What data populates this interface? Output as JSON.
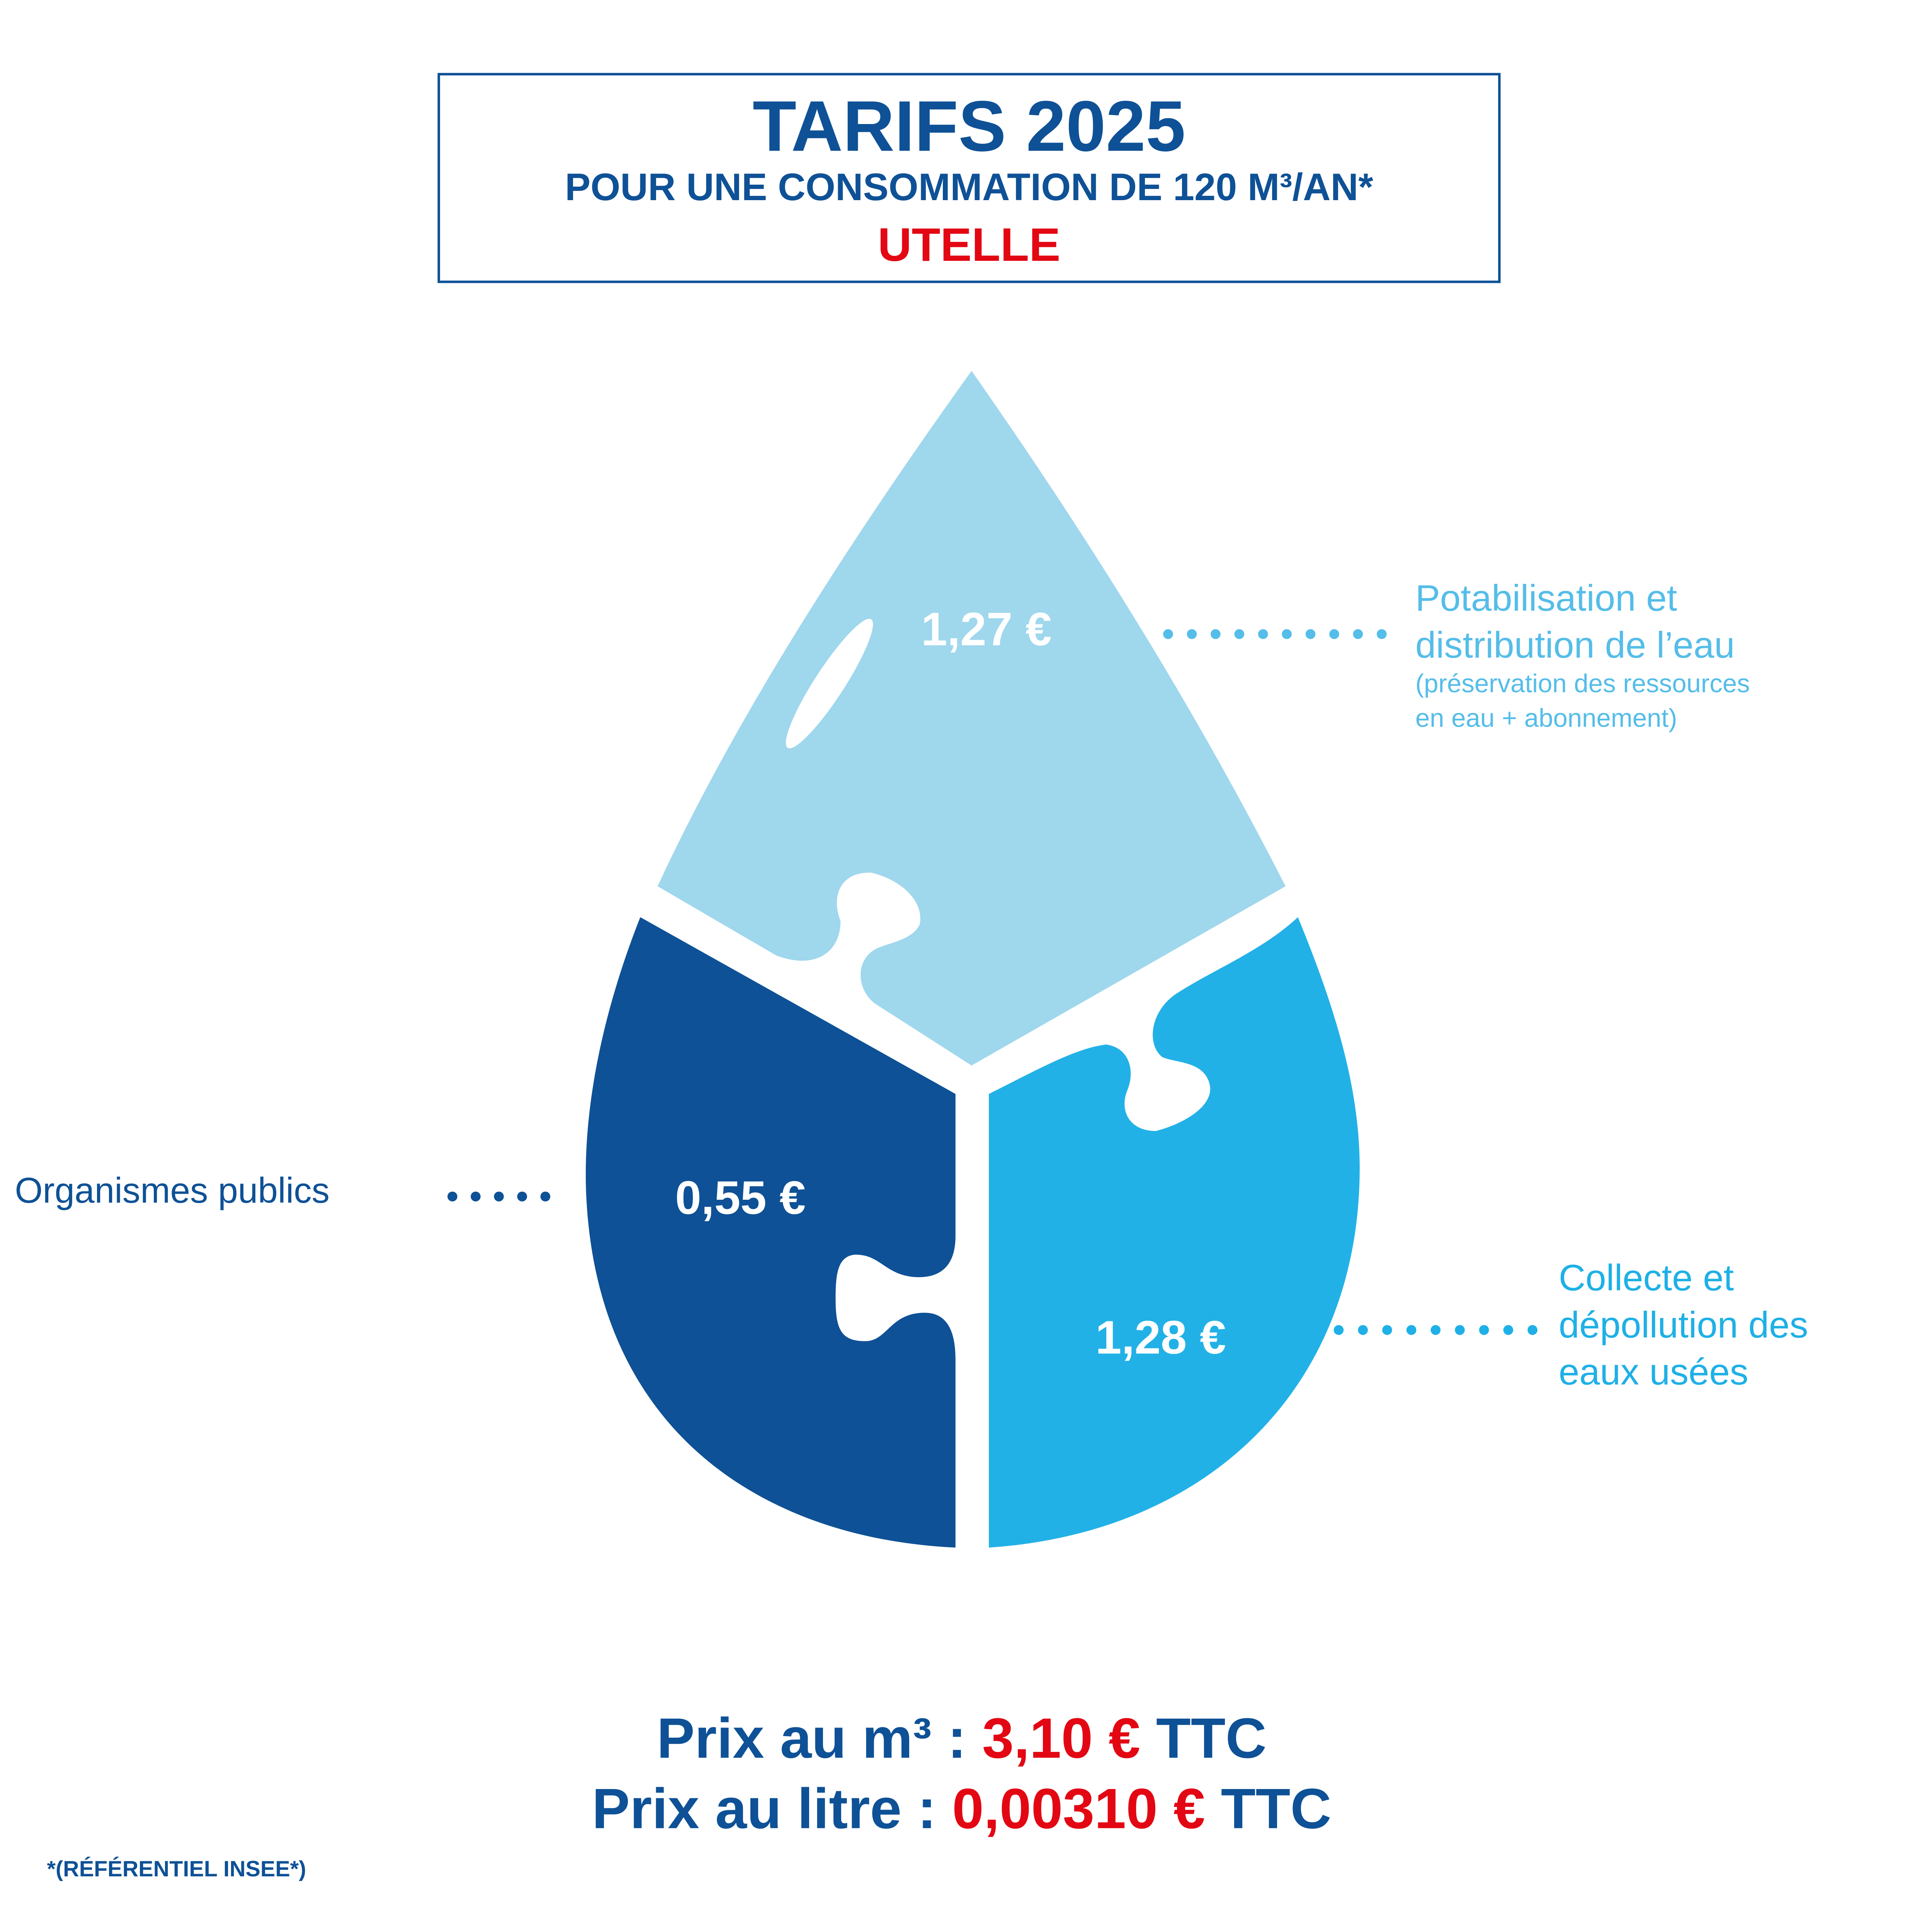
{
  "header": {
    "title": "TARIFS 2025",
    "subtitle": "POUR UNE CONSOMMATION DE 120 M³/AN*",
    "commune": "UTELLE"
  },
  "segments": [
    {
      "value": "1,27 €",
      "label_line1": "Potabilisation et",
      "label_line2": "distribution de l’eau",
      "note_line1": "(préservation des ressources",
      "note_line2": "en eau + abonnement)",
      "color": "#9fd7ed",
      "label_color": "#55bde9"
    },
    {
      "value": "0,55 €",
      "label_line1": "Organismes publics",
      "color": "#0e5196",
      "label_color": "#0e5196"
    },
    {
      "value": "1,28 €",
      "label_line1": "Collecte et",
      "label_line2": "dépollution des",
      "label_line3": "eaux usées",
      "color": "#22b1e7",
      "label_color": "#1eb0e6"
    }
  ],
  "prices": {
    "m3_label": "Prix au m³ : ",
    "m3_value": "3,10 €",
    "litre_label": "Prix au litre : ",
    "litre_value": "0,00310 €",
    "suffix": " TTC"
  },
  "footnote": "*(RÉFÉRENTIEL INSEE*)",
  "colors": {
    "primary": "#0e5196",
    "accent_red": "#e30613"
  }
}
